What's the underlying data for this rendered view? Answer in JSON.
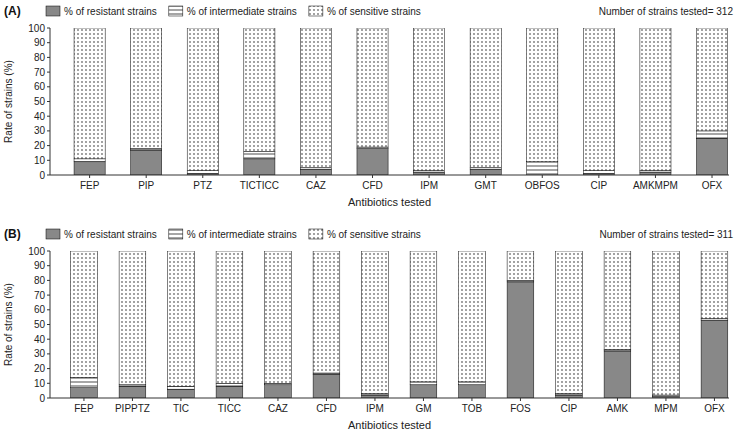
{
  "chart_data": [
    {
      "type": "bar",
      "stacked": true,
      "title": "(A)",
      "annotations": [
        "Number of strains tested= 312"
      ],
      "categories": [
        "FEP",
        "PIP",
        "PTZ",
        "TICTICC",
        "CAZ",
        "CFD",
        "IPM",
        "GMT",
        "OBFOS",
        "CIP",
        "AMKMPM",
        "OFX"
      ],
      "series": [
        {
          "name": "% of resistant strains",
          "color": "#888888",
          "values": [
            9,
            17,
            1,
            11,
            4,
            18,
            2,
            4,
            0,
            1,
            2,
            25
          ]
        },
        {
          "name": "% of intermediate strains",
          "color": "#ffffff",
          "values": [
            2,
            1,
            2,
            5,
            1,
            1,
            1,
            1,
            9,
            2,
            1,
            5
          ]
        },
        {
          "name": "% of sensitive strains",
          "color": "#ffffff",
          "values": [
            89,
            82,
            97,
            84,
            95,
            81,
            97,
            95,
            91,
            97,
            97,
            70
          ]
        }
      ],
      "xlabel": "Antibiotics tested",
      "ylabel": "Rate of strains (%)",
      "ylim": [
        0,
        100
      ],
      "yticks": [
        0,
        10,
        20,
        30,
        40,
        50,
        60,
        70,
        80,
        90,
        100
      ],
      "grid": false,
      "legend": "top"
    },
    {
      "type": "bar",
      "stacked": true,
      "title": "(B)",
      "annotations": [
        "Number of strains tested= 311"
      ],
      "categories": [
        "FEP",
        "PIPPTZ",
        "TIC",
        "TICC",
        "CAZ",
        "CFD",
        "IPM",
        "GM",
        "TOB",
        "FOS",
        "CIP",
        "AMK",
        "MPM",
        "OFX"
      ],
      "series": [
        {
          "name": "% of resistant strains",
          "color": "#888888",
          "values": [
            7,
            8,
            6,
            8,
            9,
            16,
            2,
            9,
            9,
            79,
            2,
            32,
            1,
            53
          ]
        },
        {
          "name": "% of intermediate strains",
          "color": "#ffffff",
          "values": [
            7,
            1,
            2,
            2,
            1,
            1,
            1,
            2,
            2,
            1,
            1,
            1,
            1,
            1
          ]
        },
        {
          "name": "% of sensitive strains",
          "color": "#ffffff",
          "values": [
            86,
            91,
            92,
            90,
            90,
            83,
            97,
            89,
            89,
            20,
            97,
            67,
            98,
            46
          ]
        }
      ],
      "xlabel": "Antibiotics tested",
      "ylabel": "Rate of strains (%)",
      "ylim": [
        0,
        100
      ],
      "yticks": [
        0,
        10,
        20,
        30,
        40,
        50,
        60,
        70,
        80,
        90,
        100
      ],
      "grid": false,
      "legend": "top"
    }
  ]
}
